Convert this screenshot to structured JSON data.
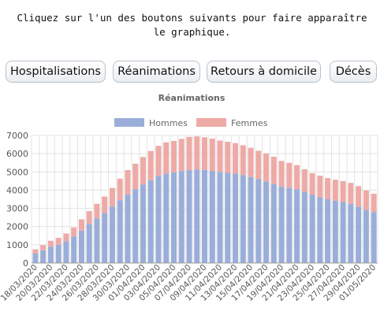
{
  "instruction": {
    "line1": "Cliquez sur l'un des boutons suivants pour faire apparaître",
    "line2": "le graphique."
  },
  "buttons": [
    {
      "label": "Hospitalisations"
    },
    {
      "label": "Réanimations"
    },
    {
      "label": "Retours à domicile"
    },
    {
      "label": "Décès"
    }
  ],
  "colors": {
    "hommes": "#9aaed9",
    "femmes": "#eeaaa6",
    "grid": "#e3e3e3",
    "axis": "#999999"
  },
  "chart_data": {
    "type": "bar",
    "stacked": true,
    "title": "Réanimations",
    "legend_position": "top",
    "grid": true,
    "ylim": [
      0,
      7000
    ],
    "yticks": [
      0,
      1000,
      2000,
      3000,
      4000,
      5000,
      6000,
      7000
    ],
    "categories": [
      "18/03/2020",
      "19/03/2020",
      "20/03/2020",
      "21/03/2020",
      "22/03/2020",
      "23/03/2020",
      "24/03/2020",
      "25/03/2020",
      "26/03/2020",
      "27/03/2020",
      "28/03/2020",
      "29/03/2020",
      "30/03/2020",
      "31/03/2020",
      "01/04/2020",
      "02/04/2020",
      "03/04/2020",
      "04/04/2020",
      "05/04/2020",
      "06/04/2020",
      "07/04/2020",
      "08/04/2020",
      "09/04/2020",
      "10/04/2020",
      "11/04/2020",
      "12/04/2020",
      "13/04/2020",
      "14/04/2020",
      "15/04/2020",
      "16/04/2020",
      "17/04/2020",
      "18/04/2020",
      "19/04/2020",
      "20/04/2020",
      "21/04/2020",
      "22/04/2020",
      "23/04/2020",
      "24/04/2020",
      "25/04/2020",
      "26/04/2020",
      "27/04/2020",
      "28/04/2020",
      "29/04/2020",
      "30/04/2020",
      "01/05/2020"
    ],
    "shown_tick_labels": [
      "18/03/2020",
      "20/03/2020",
      "22/03/2020",
      "24/03/2020",
      "26/03/2020",
      "28/03/2020",
      "30/03/2020",
      "01/04/2020",
      "03/04/2020",
      "05/04/2020",
      "07/04/2020",
      "09/04/2020",
      "11/04/2020",
      "13/04/2020",
      "15/04/2020",
      "17/04/2020",
      "19/04/2020",
      "21/04/2020",
      "23/04/2020",
      "25/04/2020",
      "27/04/2020",
      "29/04/2020",
      "01/05/2020"
    ],
    "series": [
      {
        "name": "Hommes",
        "values": [
          520,
          700,
          900,
          1000,
          1200,
          1450,
          1780,
          2150,
          2450,
          2750,
          3100,
          3450,
          3750,
          4050,
          4300,
          4550,
          4780,
          4900,
          4980,
          5050,
          5100,
          5120,
          5100,
          5060,
          5000,
          4950,
          4900,
          4830,
          4720,
          4600,
          4480,
          4330,
          4200,
          4120,
          4050,
          3920,
          3750,
          3620,
          3500,
          3420,
          3350,
          3250,
          3100,
          2920,
          2800
        ]
      },
      {
        "name": "Femmes",
        "values": [
          230,
          280,
          320,
          380,
          420,
          500,
          620,
          700,
          800,
          900,
          1020,
          1180,
          1350,
          1400,
          1520,
          1600,
          1650,
          1720,
          1720,
          1760,
          1820,
          1830,
          1800,
          1770,
          1720,
          1700,
          1680,
          1630,
          1600,
          1560,
          1530,
          1500,
          1400,
          1380,
          1320,
          1220,
          1180,
          1170,
          1160,
          1150,
          1150,
          1150,
          1120,
          1060,
          1000
        ]
      }
    ]
  }
}
